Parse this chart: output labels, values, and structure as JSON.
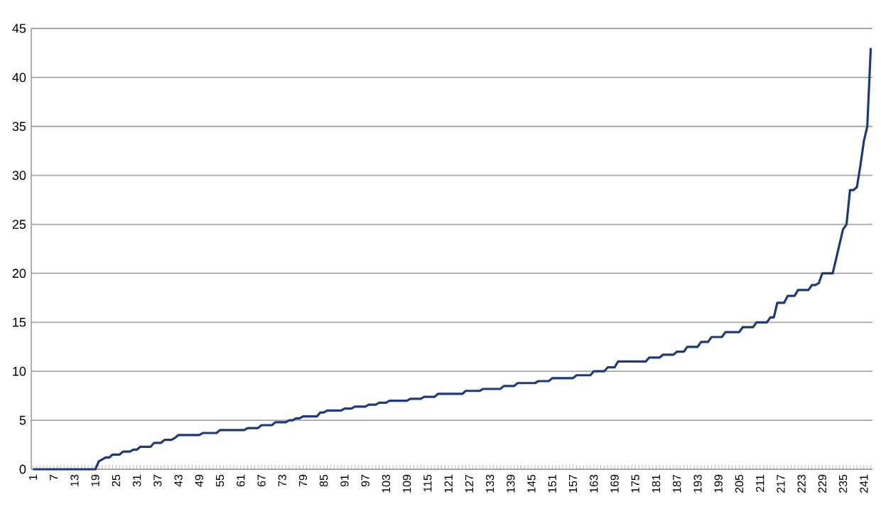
{
  "chart_data": {
    "type": "line",
    "categories": [
      "1",
      null,
      null,
      null,
      null,
      null,
      "7",
      null,
      null,
      null,
      null,
      null,
      "13",
      null,
      null,
      null,
      null,
      null,
      "19",
      null,
      null,
      null,
      null,
      null,
      "25",
      null,
      null,
      null,
      null,
      null,
      "31",
      null,
      null,
      null,
      null,
      null,
      "37",
      null,
      null,
      null,
      null,
      null,
      "43",
      null,
      null,
      null,
      null,
      null,
      "49",
      null,
      null,
      null,
      null,
      null,
      "55",
      null,
      null,
      null,
      null,
      null,
      "61",
      null,
      null,
      null,
      null,
      null,
      "67",
      null,
      null,
      null,
      null,
      null,
      "73",
      null,
      null,
      null,
      null,
      null,
      "79",
      null,
      null,
      null,
      null,
      null,
      "85",
      null,
      null,
      null,
      null,
      null,
      "91",
      null,
      null,
      null,
      null,
      null,
      "97",
      null,
      null,
      null,
      null,
      null,
      "103",
      null,
      null,
      null,
      null,
      null,
      "109",
      null,
      null,
      null,
      null,
      null,
      "115",
      null,
      null,
      null,
      null,
      null,
      "121",
      null,
      null,
      null,
      null,
      null,
      "127",
      null,
      null,
      null,
      null,
      null,
      "133",
      null,
      null,
      null,
      null,
      null,
      "139",
      null,
      null,
      null,
      null,
      null,
      "145",
      null,
      null,
      null,
      null,
      null,
      "151",
      null,
      null,
      null,
      null,
      null,
      "157",
      null,
      null,
      null,
      null,
      null,
      "163",
      null,
      null,
      null,
      null,
      null,
      "169",
      null,
      null,
      null,
      null,
      null,
      "175",
      null,
      null,
      null,
      null,
      null,
      "181",
      null,
      null,
      null,
      null,
      null,
      "187",
      null,
      null,
      null,
      null,
      null,
      "193",
      null,
      null,
      null,
      null,
      null,
      "199",
      null,
      null,
      null,
      null,
      null,
      "205",
      null,
      null,
      null,
      null,
      null,
      "211",
      null,
      null,
      null,
      null,
      null,
      "217",
      null,
      null,
      null,
      null,
      null,
      "223",
      null,
      null,
      null,
      null,
      null,
      "229",
      null,
      null,
      null,
      null,
      null,
      "235",
      null,
      null,
      null,
      null,
      null,
      "241",
      null,
      null
    ],
    "values": [
      0,
      0,
      0,
      0,
      0,
      0,
      0,
      0,
      0,
      0,
      0,
      0,
      0,
      0,
      0,
      0,
      0,
      0,
      0,
      0.8,
      1.0,
      1.2,
      1.2,
      1.5,
      1.5,
      1.5,
      1.8,
      1.8,
      1.8,
      2.0,
      2.0,
      2.3,
      2.3,
      2.3,
      2.3,
      2.7,
      2.7,
      2.7,
      3.0,
      3.0,
      3.0,
      3.2,
      3.5,
      3.5,
      3.5,
      3.5,
      3.5,
      3.5,
      3.5,
      3.7,
      3.7,
      3.7,
      3.7,
      3.7,
      4.0,
      4.0,
      4.0,
      4.0,
      4.0,
      4.0,
      4.0,
      4.0,
      4.2,
      4.2,
      4.2,
      4.2,
      4.5,
      4.5,
      4.5,
      4.5,
      4.8,
      4.8,
      4.8,
      4.8,
      5.0,
      5.0,
      5.2,
      5.2,
      5.4,
      5.4,
      5.4,
      5.4,
      5.4,
      5.8,
      5.8,
      6.0,
      6.0,
      6.0,
      6.0,
      6.0,
      6.2,
      6.2,
      6.2,
      6.4,
      6.4,
      6.4,
      6.4,
      6.6,
      6.6,
      6.6,
      6.8,
      6.8,
      6.8,
      7.0,
      7.0,
      7.0,
      7.0,
      7.0,
      7.0,
      7.2,
      7.2,
      7.2,
      7.2,
      7.4,
      7.4,
      7.4,
      7.4,
      7.7,
      7.7,
      7.7,
      7.7,
      7.7,
      7.7,
      7.7,
      7.7,
      8.0,
      8.0,
      8.0,
      8.0,
      8.0,
      8.2,
      8.2,
      8.2,
      8.2,
      8.2,
      8.2,
      8.5,
      8.5,
      8.5,
      8.5,
      8.8,
      8.8,
      8.8,
      8.8,
      8.8,
      8.8,
      9.0,
      9.0,
      9.0,
      9.0,
      9.3,
      9.3,
      9.3,
      9.3,
      9.3,
      9.3,
      9.3,
      9.6,
      9.6,
      9.6,
      9.6,
      9.6,
      10.0,
      10.0,
      10.0,
      10.0,
      10.4,
      10.4,
      10.4,
      11.0,
      11.0,
      11.0,
      11.0,
      11.0,
      11.0,
      11.0,
      11.0,
      11.0,
      11.4,
      11.4,
      11.4,
      11.4,
      11.7,
      11.7,
      11.7,
      11.7,
      12.0,
      12.0,
      12.0,
      12.5,
      12.5,
      12.5,
      12.5,
      13.0,
      13.0,
      13.0,
      13.5,
      13.5,
      13.5,
      13.5,
      14.0,
      14.0,
      14.0,
      14.0,
      14.0,
      14.5,
      14.5,
      14.5,
      14.5,
      15.0,
      15.0,
      15.0,
      15.0,
      15.5,
      15.5,
      17.0,
      17.0,
      17.0,
      17.7,
      17.7,
      17.7,
      18.3,
      18.3,
      18.3,
      18.3,
      18.8,
      18.8,
      19.0,
      20.0,
      20.0,
      20.0,
      20.0,
      21.5,
      23.0,
      24.5,
      25.0,
      28.5,
      28.5,
      28.8,
      31.0,
      33.5,
      35.0,
      43.0
    ],
    "color": "#1f3a7a",
    "ylim": [
      0,
      45
    ],
    "yticks": [
      0,
      5,
      10,
      15,
      20,
      25,
      30,
      35,
      40,
      45
    ],
    "grid": "y"
  }
}
